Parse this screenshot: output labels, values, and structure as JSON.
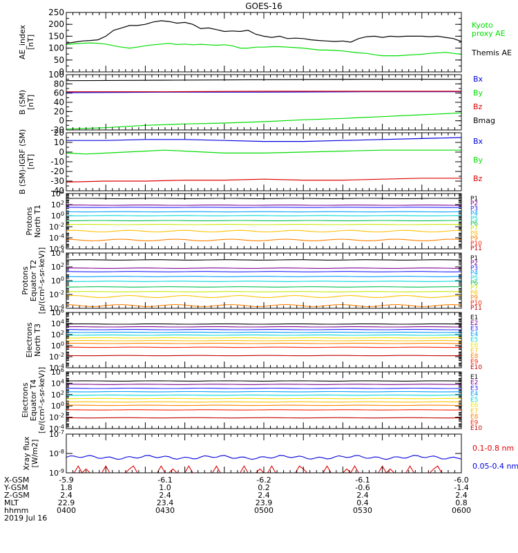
{
  "title": "GOES-16",
  "colors": {
    "black": "#000000",
    "green": "#00dd00",
    "blue": "#0000dd",
    "red": "#dd0000",
    "p1": "#000000",
    "p2": "#7a0090",
    "p3": "#2020ff",
    "p4": "#00a0ff",
    "p5": "#00d8d8",
    "p6": "#00c050",
    "p7": "#c8e800",
    "p8": "#ffc000",
    "p9": "#ff8000",
    "p10": "#ff2000",
    "p11": "#c00000",
    "e1": "#000000",
    "e2": "#7a0090",
    "e3": "#2020ff",
    "e4": "#00a0ff",
    "e5": "#00d8d8",
    "e6": "#e8e800",
    "e7": "#ffc000",
    "e8": "#ff8000",
    "e9": "#ff2000",
    "e10": "#c00000"
  },
  "chart_data": [
    {
      "type": "line",
      "ylabel": "AE_index [nT]",
      "ylim": [
        0,
        250
      ],
      "yticks": [
        "0",
        "50",
        "100",
        "150",
        "200",
        "250"
      ],
      "series": [
        {
          "name": "Kyoto proxy AE",
          "color": "#00dd00",
          "x": [
            0,
            2,
            4,
            6,
            8,
            10,
            12,
            14,
            16,
            18,
            20,
            22,
            24,
            26,
            28,
            30,
            32,
            34,
            36,
            38,
            40,
            42,
            44,
            46,
            48,
            50,
            52,
            54,
            56,
            58,
            60,
            62,
            64,
            66,
            68,
            70,
            72,
            74,
            76,
            78,
            80,
            82,
            84,
            86,
            88,
            90,
            92,
            94,
            96,
            98,
            100
          ],
          "y": [
            115,
            118,
            120,
            122,
            120,
            117,
            110,
            104,
            100,
            104,
            110,
            114,
            117,
            120,
            115,
            117,
            114,
            116,
            114,
            112,
            114,
            110,
            100,
            100,
            104,
            104,
            106,
            106,
            104,
            102,
            100,
            96,
            92,
            92,
            90,
            88,
            84,
            80,
            78,
            72,
            68,
            68,
            68,
            70,
            72,
            74,
            78,
            80,
            82,
            78,
            74
          ]
        },
        {
          "name": "Themis AE",
          "color": "#000000",
          "x": [
            0,
            2,
            4,
            6,
            8,
            10,
            12,
            14,
            16,
            18,
            20,
            22,
            24,
            26,
            28,
            30,
            32,
            34,
            36,
            38,
            40,
            42,
            44,
            46,
            48,
            50,
            52,
            54,
            56,
            58,
            60,
            62,
            64,
            66,
            68,
            70,
            72,
            74,
            76,
            78,
            80,
            82,
            84,
            86,
            88,
            90,
            92,
            94,
            96,
            98,
            100
          ],
          "y": [
            120,
            125,
            130,
            132,
            135,
            150,
            175,
            185,
            195,
            195,
            200,
            210,
            215,
            212,
            205,
            208,
            200,
            182,
            185,
            178,
            170,
            172,
            170,
            175,
            158,
            150,
            145,
            150,
            140,
            142,
            140,
            135,
            132,
            130,
            128,
            130,
            125,
            140,
            148,
            150,
            145,
            150,
            148,
            150,
            150,
            150,
            148,
            150,
            145,
            140,
            128
          ]
        }
      ]
    },
    {
      "type": "line",
      "ylabel": "B (SM) [nT]",
      "ylim": [
        -20,
        100
      ],
      "yticks": [
        "-20",
        "0",
        "20",
        "40",
        "60",
        "80",
        "100"
      ],
      "series": [
        {
          "name": "Bx",
          "color": "#0000dd",
          "x": [
            0,
            25,
            50,
            75,
            100
          ],
          "y": [
            61,
            62,
            62,
            63,
            63
          ]
        },
        {
          "name": "By",
          "color": "#00dd00",
          "x": [
            0,
            10,
            20,
            30,
            40,
            50,
            60,
            70,
            80,
            90,
            100
          ],
          "y": [
            -18,
            -15,
            -10,
            -7,
            -5,
            -2,
            2,
            5,
            9,
            13,
            17
          ]
        },
        {
          "name": "Bz",
          "color": "#dd0000",
          "x": [
            0,
            25,
            50,
            75,
            100
          ],
          "y": [
            63,
            63,
            64,
            64,
            64
          ]
        },
        {
          "name": "Bmag",
          "color": "#000000",
          "x": [
            0,
            25,
            50,
            75,
            100
          ],
          "y": [
            87,
            88,
            89,
            90,
            90
          ]
        }
      ]
    },
    {
      "type": "line",
      "ylabel": "B (SM)-IGRF (SM) [nT]",
      "ylim": [
        -40,
        20
      ],
      "yticks": [
        "-40",
        "-30",
        "-20",
        "-10",
        "0",
        "10",
        "20"
      ],
      "series": [
        {
          "name": "Bx",
          "color": "#0000dd",
          "x": [
            0,
            10,
            20,
            30,
            40,
            50,
            60,
            70,
            80,
            90,
            100
          ],
          "y": [
            12,
            12,
            13,
            13,
            12,
            11,
            11,
            12,
            13,
            14,
            15
          ]
        },
        {
          "name": "By",
          "color": "#00dd00",
          "x": [
            0,
            5,
            10,
            15,
            20,
            25,
            30,
            40,
            50,
            60,
            70,
            80,
            90,
            100
          ],
          "y": [
            -1,
            -2,
            -1,
            0,
            1,
            2,
            1,
            -1,
            -1,
            0,
            1,
            2,
            2,
            2
          ]
        },
        {
          "name": "Bz",
          "color": "#dd0000",
          "x": [
            0,
            10,
            20,
            30,
            40,
            50,
            60,
            70,
            80,
            90,
            100
          ],
          "y": [
            -31,
            -30,
            -30,
            -29,
            -29,
            -28,
            -29,
            -29,
            -28,
            -27,
            -27
          ]
        }
      ]
    },
    {
      "type": "line",
      "ylabel": "Protons North T1",
      "yscale": "log",
      "ylim": [
        -6,
        4
      ],
      "yticks_exp": [
        4,
        2,
        0,
        -2,
        -4,
        -6
      ],
      "legend": [
        "P1",
        "P2",
        "P3",
        "P4",
        "P5",
        "P6",
        "P7",
        "P8",
        "P9",
        "P10",
        "P11"
      ],
      "levels_log10": [
        3.1,
        1.9,
        1.5,
        0.7,
        0.0,
        -0.9,
        -1.6,
        -2.8,
        -4.4
      ]
    },
    {
      "type": "line",
      "ylabel": "Protons Equator T2 [p/(cm²-s-sr-keV)]",
      "yscale": "log",
      "ylim": [
        -4,
        4
      ],
      "yticks_exp": [
        4,
        2,
        0,
        -2,
        -4
      ],
      "legend": [
        "P1",
        "P2",
        "P3",
        "P4",
        "P5",
        "P6",
        "P7",
        "P8",
        "P9",
        "P10",
        "P11"
      ],
      "levels_log10": [
        3.0,
        1.8,
        1.3,
        0.6,
        -0.1,
        -0.9,
        -1.6,
        -2.3,
        -3.6
      ]
    },
    {
      "type": "line",
      "ylabel": "Electrons North T3",
      "yscale": "log",
      "ylim": [
        -4,
        6
      ],
      "yticks_exp": [
        6,
        4,
        2,
        0,
        -2,
        -4
      ],
      "legend": [
        "E1",
        "E2",
        "E3",
        "E4",
        "E5",
        "E6",
        "E7",
        "E8",
        "E9",
        "E10"
      ],
      "levels_log10": [
        3.9,
        3.4,
        2.9,
        2.4,
        1.9,
        1.4,
        0.9,
        0.4,
        -0.3,
        -1.8
      ]
    },
    {
      "type": "line",
      "ylabel": "Electrons Equator T4 [e/(cm²-s-sr-keV)]",
      "yscale": "log",
      "ylim": [
        -4,
        6
      ],
      "yticks_exp": [
        6,
        4,
        2,
        0,
        -2,
        -4
      ],
      "legend": [
        "E1",
        "E2",
        "E3",
        "E4",
        "E5",
        "E6",
        "E7",
        "E8",
        "E9",
        "E10"
      ],
      "levels_log10": [
        4.4,
        3.8,
        3.1,
        2.5,
        1.9,
        1.3,
        0.7,
        0.1,
        -0.7,
        -2.1
      ]
    },
    {
      "type": "line",
      "ylabel": "Xray flux [W/m2]",
      "yscale": "log",
      "ylim": [
        -9,
        -7
      ],
      "yticks_exp": [
        -7,
        -8,
        -9
      ],
      "series": [
        {
          "name": "0.1-0.8 nm",
          "color": "#dd0000"
        },
        {
          "name": "0.05-0.4 nm",
          "color": "#0000dd"
        }
      ]
    }
  ],
  "labels": {
    "ae": "AE_index\n[nT]",
    "b": "B (SM)\n[nT]",
    "bigrf": "B (SM)-IGRF (SM)\n[nT]",
    "pn": "Protons\nNorth T1",
    "pe": "Protons\nEquator T2\n[p/(cm²-s-sr-keV)]",
    "en": "Electrons\nNorth T3",
    "ee": "Electrons\nEquator T4\n[e/(cm²-s-sr-keV)]",
    "xr": "Xray flux\n[W/m2]"
  },
  "legends": {
    "ae": [
      {
        "text": "Kyoto",
        "color": "#00dd00"
      },
      {
        "text": "proxy AE",
        "color": "#00dd00"
      },
      {
        "text": "Themis AE",
        "color": "#000000"
      }
    ],
    "b": [
      {
        "text": "Bx",
        "color": "#0000dd"
      },
      {
        "text": "By",
        "color": "#00dd00"
      },
      {
        "text": "Bz",
        "color": "#dd0000"
      },
      {
        "text": "Bmag",
        "color": "#000000"
      }
    ],
    "bigrf": [
      {
        "text": "Bx",
        "color": "#0000dd"
      },
      {
        "text": "By",
        "color": "#00dd00"
      },
      {
        "text": "Bz",
        "color": "#dd0000"
      }
    ],
    "xr": [
      {
        "text": "0.1-0.8 nm",
        "color": "#dd0000"
      },
      {
        "text": "0.05-0.4 nm",
        "color": "#0000dd"
      }
    ]
  },
  "axis": {
    "rows": [
      "X-GSM",
      "Y-GSM",
      "Z-GSM",
      "MLT",
      "hhmm"
    ],
    "date": "2019 Jul 16",
    "ticks": [
      {
        "x-gsm": "-5.9",
        "y-gsm": "1.8",
        "z-gsm": "2.4",
        "mlt": "22.9",
        "hhmm": "0400"
      },
      {
        "x-gsm": "-6.1",
        "y-gsm": "1.0",
        "z-gsm": "2.4",
        "mlt": "23.4",
        "hhmm": "0430"
      },
      {
        "x-gsm": "-6.2",
        "y-gsm": "0.2",
        "z-gsm": "2.4",
        "mlt": "23.9",
        "hhmm": "0500"
      },
      {
        "x-gsm": "-6.1",
        "y-gsm": "-0.6",
        "z-gsm": "2.4",
        "mlt": "0.4",
        "hhmm": "0530"
      },
      {
        "x-gsm": "-6.0",
        "y-gsm": "-1.4",
        "z-gsm": "2.4",
        "mlt": "0.8",
        "hhmm": "0600"
      }
    ]
  }
}
